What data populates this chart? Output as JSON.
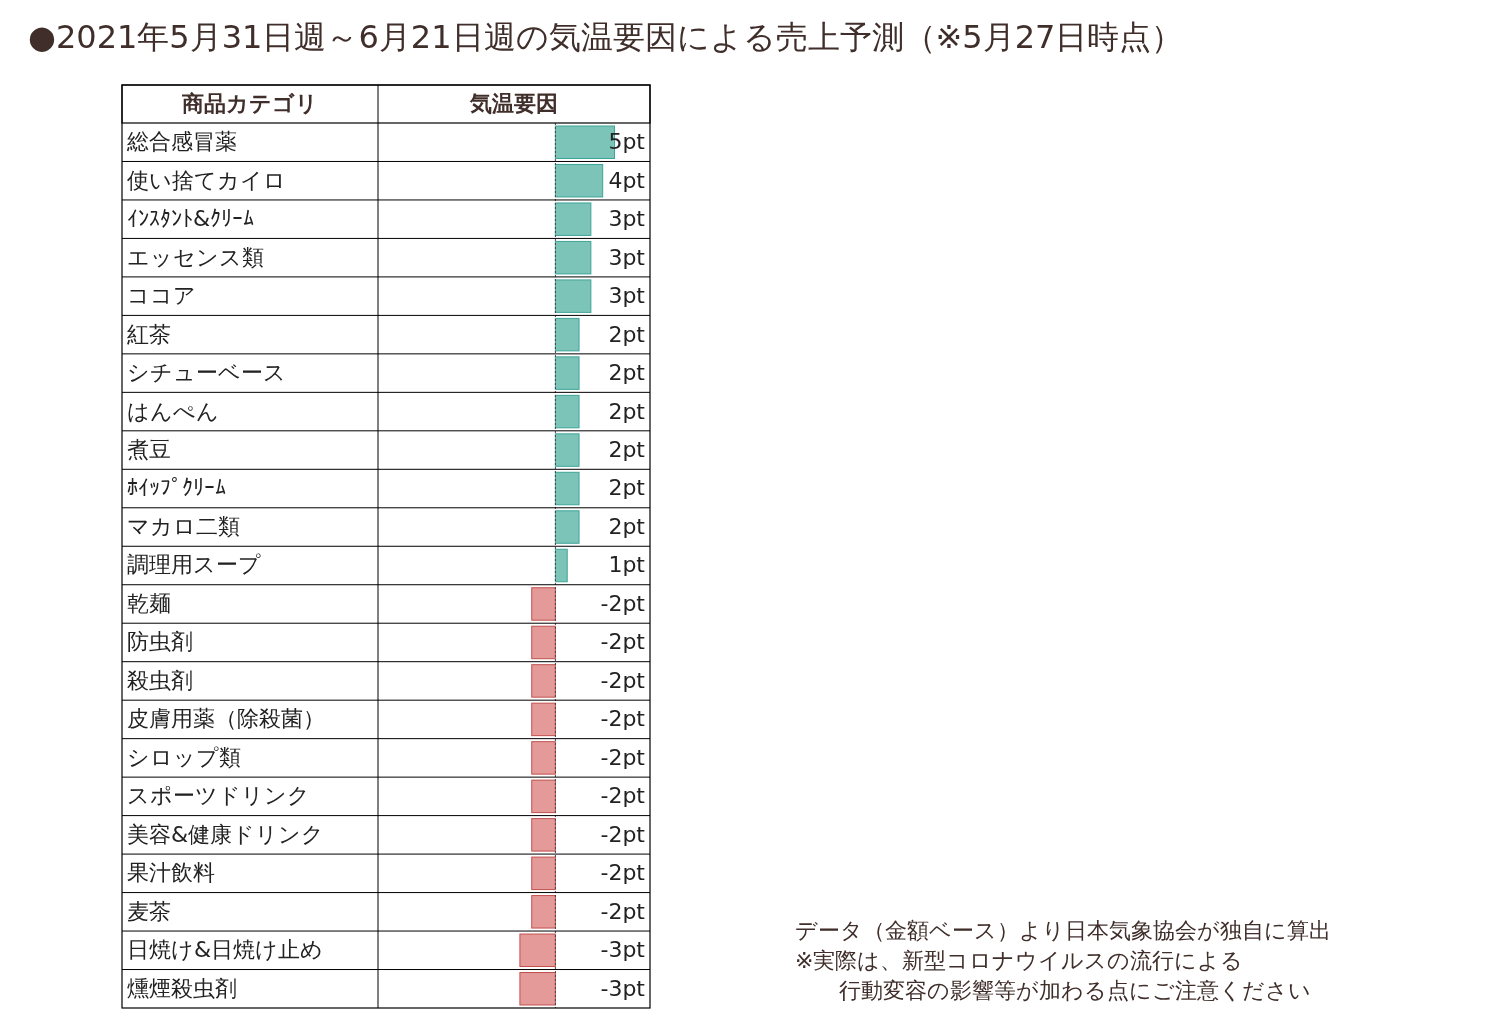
{
  "chart_data": {
    "type": "bar",
    "orientation": "horizontal",
    "title": "●2021年5月31日週～6月21日週の気温要因による売上予測（※5月27日時点）",
    "ylabel": "商品カテゴリ",
    "xlabel": "気温要因",
    "categories": [
      "総合感冒薬",
      "使い捨てカイロ",
      "ｲﾝｽﾀﾝﾄ&ｸﾘｰﾑ",
      "エッセンス類",
      "ココア",
      "紅茶",
      "シチューベース",
      "はんぺん",
      "煮豆",
      "ﾎｲｯﾌﾟｸﾘｰﾑ",
      "マカロ二類",
      "調理用スープ",
      "乾麺",
      "防虫剤",
      "殺虫剤",
      "皮膚用薬（除殺菌）",
      "シロップ類",
      "スポーツドリンク",
      "美容&健康ドリンク",
      "果汁飲料",
      "麦茶",
      "日焼け&日焼け止め",
      "燻煙殺虫剤"
    ],
    "values": [
      5,
      4,
      3,
      3,
      3,
      2,
      2,
      2,
      2,
      2,
      2,
      1,
      -2,
      -2,
      -2,
      -2,
      -2,
      -2,
      -2,
      -2,
      -2,
      -3,
      -3
    ],
    "value_labels": [
      "5pt",
      "4pt",
      "3pt",
      "3pt",
      "3pt",
      "2pt",
      "2pt",
      "2pt",
      "2pt",
      "2pt",
      "2pt",
      "1pt",
      "-2pt",
      "-2pt",
      "-2pt",
      "-2pt",
      "-2pt",
      "-2pt",
      "-2pt",
      "-2pt",
      "-2pt",
      "-3pt",
      "-3pt"
    ],
    "colors": [
      "#7cc3b8",
      "#7cc3b8",
      "#7cc3b8",
      "#7cc3b8",
      "#7cc3b8",
      "#7cc3b8",
      "#7cc3b8",
      "#7cc3b8",
      "#7cc3b8",
      "#7cc3b8",
      "#7cc3b8",
      "#7cc3b8",
      "#e59a9a",
      "#e59a9a",
      "#e59a9a",
      "#e59a9a",
      "#e59a9a",
      "#e59a9a",
      "#e59a9a",
      "#e59a9a",
      "#e59a9a",
      "#e59a9a",
      "#e59a9a"
    ],
    "xlim": [
      -15,
      8
    ],
    "ref_lines": [
      {
        "axis": "x",
        "value": 0,
        "color": "#444444",
        "line_style": "dotted"
      }
    ],
    "annotations": [
      "データ（金額ベース）より日本気象協会が独自に算出",
      "※実際は、新型コロナウイルスの流行による",
      "　　行動変容の影響等が加わる点にご注意ください"
    ]
  }
}
